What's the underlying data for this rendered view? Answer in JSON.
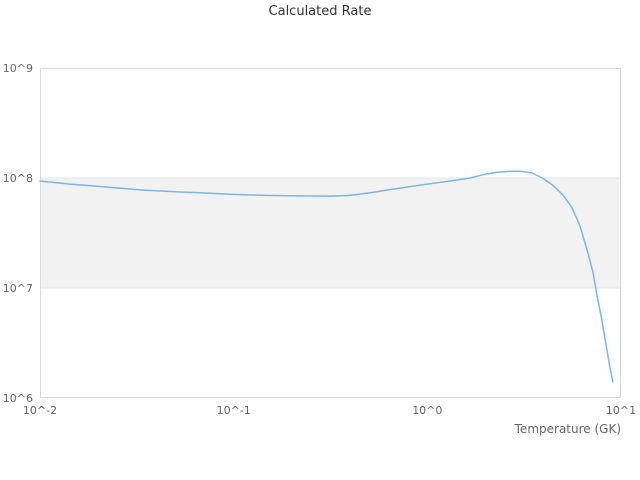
{
  "chart_data": {
    "type": "line",
    "title": "Calculated Rate",
    "xlabel": "Temperature (GK)",
    "ylabel": "",
    "x_scale": "log",
    "y_scale": "log",
    "xlim": [
      0.01,
      10
    ],
    "ylim": [
      1000000,
      1000000000
    ],
    "x_tick_values": [
      0.01,
      0.1,
      1,
      10
    ],
    "x_tick_labels": [
      "10^-2",
      "10^-1",
      "10^0",
      "10^1"
    ],
    "y_tick_values": [
      1000000,
      10000000,
      100000000,
      1000000000
    ],
    "y_tick_labels": [
      "10^6",
      "10^7",
      "10^8",
      "10^9"
    ],
    "legend": "none",
    "grid": "horizontal-gridlines-only",
    "alternating_band": {
      "from": 10000000,
      "to": 100000000
    },
    "series": [
      {
        "name": "Calculated Rate",
        "color": "#7cb5ec",
        "x": [
          0.01,
          0.0143,
          0.0217,
          0.0328,
          0.0497,
          0.0714,
          0.0995,
          0.145,
          0.22,
          0.314,
          0.399,
          0.506,
          0.641,
          0.814,
          1.03,
          1.31,
          1.66,
          1.98,
          2.3,
          2.65,
          3.05,
          3.48,
          3.93,
          4.44,
          5.02,
          5.57,
          6.13,
          6.67,
          7.16,
          7.52,
          7.97,
          8.36,
          8.76,
          9.07
        ],
        "y": [
          94000000.0,
          88000000.0,
          83000000.0,
          78000000.0,
          75000000.0,
          73000000.0,
          71000000.0,
          69500000.0,
          68700000.0,
          68400000.0,
          69500000.0,
          73500000.0,
          78500000.0,
          83500000.0,
          88500000.0,
          94000000.0,
          100000000.0,
          108000000.0,
          113000000.0,
          115000000.0,
          115000000.0,
          111000000.0,
          100000000.0,
          86000000.0,
          70000000.0,
          54000000.0,
          37000000.0,
          22500000.0,
          14000000.0,
          8600000.0,
          5100000.0,
          3100000.0,
          1900000.0,
          1400000.0
        ]
      }
    ]
  },
  "colors": {
    "line": "#7cb5ec",
    "band": "#f2f2f2",
    "gridline": "#e6e6e6",
    "border": "#d9d9d9",
    "title_text": "#333333",
    "label_text": "#666666",
    "background": "#ffffff"
  }
}
